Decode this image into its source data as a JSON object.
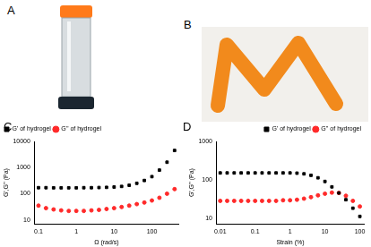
{
  "panel_labels": [
    "A",
    "B",
    "C",
    "D"
  ],
  "chart_data": [
    {
      "type": "scatter",
      "x_label": "Ω (rad/s)",
      "y_label": "G',G'' (Pa)",
      "log": true,
      "grid": false,
      "legend": "upper-left",
      "x": [
        0.1,
        0.158,
        0.251,
        0.398,
        0.631,
        1,
        1.58,
        2.51,
        3.98,
        6.31,
        10,
        15.8,
        25.1,
        39.8,
        63.1,
        100,
        158,
        251,
        398
      ],
      "xlim": [
        0.08,
        500
      ],
      "xticks": [
        0.1,
        1,
        10,
        100
      ],
      "ylim": [
        7,
        10000
      ],
      "yticks": [
        10,
        100,
        1000,
        10000
      ],
      "series": [
        {
          "name": "G' of hydrogel",
          "color": "#000000",
          "marker": "square",
          "values": [
            170,
            170,
            168,
            168,
            168,
            168,
            170,
            170,
            172,
            175,
            180,
            190,
            210,
            250,
            320,
            450,
            800,
            1600,
            4500
          ]
        },
        {
          "name": "G'' of hydrogel",
          "color": "#ff2a2a",
          "marker": "circle",
          "values": [
            35,
            28,
            25,
            23,
            22,
            22,
            22,
            23,
            24,
            26,
            28,
            31,
            35,
            40,
            46,
            55,
            70,
            100,
            150
          ]
        }
      ]
    },
    {
      "type": "scatter",
      "x_label": "Strain (%)",
      "y_label": "G',G'' (Pa)",
      "log": true,
      "grid": false,
      "legend": "upper-right",
      "x": [
        0.01,
        0.0158,
        0.0251,
        0.0398,
        0.0631,
        0.1,
        0.158,
        0.251,
        0.398,
        0.631,
        1,
        1.58,
        2.51,
        3.98,
        6.31,
        10,
        15.8,
        25.1,
        39.8,
        63.1,
        100
      ],
      "xlim": [
        0.008,
        130
      ],
      "xticks": [
        0.01,
        0.1,
        1,
        10,
        100
      ],
      "ylim": [
        7,
        1000
      ],
      "yticks": [
        10,
        100,
        1000
      ],
      "series": [
        {
          "name": "G' of hydrogel",
          "color": "#000000",
          "marker": "square",
          "values": [
            150,
            150,
            150,
            150,
            150,
            150,
            150,
            150,
            150,
            150,
            150,
            148,
            142,
            130,
            112,
            90,
            65,
            45,
            30,
            18,
            11
          ]
        },
        {
          "name": "G'' of hydrogel",
          "color": "#ff2a2a",
          "marker": "circle",
          "values": [
            28,
            28,
            28,
            28,
            28,
            28,
            28,
            28,
            28,
            29,
            29,
            30,
            32,
            35,
            39,
            43,
            46,
            45,
            38,
            28,
            20
          ]
        }
      ]
    }
  ]
}
